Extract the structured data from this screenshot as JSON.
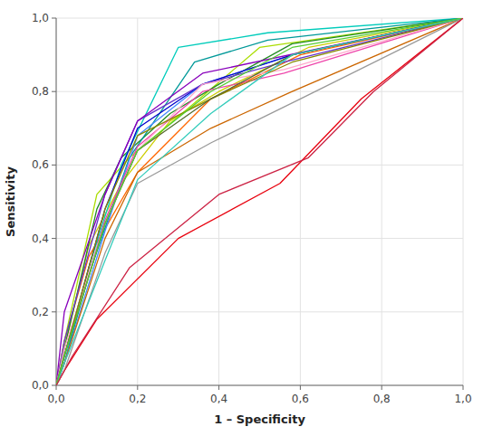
{
  "chart_data": {
    "type": "line",
    "xlabel": "1 – Specificity",
    "ylabel": "Sensitivity",
    "xlim": [
      0.0,
      1.0
    ],
    "ylim": [
      0.0,
      1.0
    ],
    "xticks": [
      {
        "value": 0.0,
        "label": "0,0"
      },
      {
        "value": 0.2,
        "label": "0,2"
      },
      {
        "value": 0.4,
        "label": "0,4"
      },
      {
        "value": 0.6,
        "label": "0,6"
      },
      {
        "value": 0.8,
        "label": "0,8"
      },
      {
        "value": 1.0,
        "label": "1,0"
      }
    ],
    "yticks": [
      {
        "value": 0.0,
        "label": "0,0"
      },
      {
        "value": 0.2,
        "label": "0,2"
      },
      {
        "value": 0.4,
        "label": "0,4"
      },
      {
        "value": 0.6,
        "label": "0,6"
      },
      {
        "value": 0.8,
        "label": "0,8"
      },
      {
        "value": 1.0,
        "label": "1,0"
      }
    ],
    "grid": true,
    "series": [
      {
        "color": "#e8000d",
        "x": [
          0,
          0.02,
          0.1,
          0.3,
          0.55,
          0.75,
          1.0
        ],
        "values": [
          0,
          0.04,
          0.18,
          0.4,
          0.55,
          0.78,
          1.0
        ]
      },
      {
        "color": "#ff6600",
        "x": [
          0,
          0.02,
          0.08,
          0.2,
          0.38,
          0.6,
          1.0
        ],
        "values": [
          0,
          0.12,
          0.35,
          0.58,
          0.78,
          0.9,
          1.0
        ]
      },
      {
        "color": "#cccc00",
        "x": [
          0,
          0.02,
          0.08,
          0.16,
          0.28,
          0.4,
          0.62,
          1.0
        ],
        "values": [
          0,
          0.1,
          0.38,
          0.55,
          0.72,
          0.8,
          0.92,
          1.0
        ]
      },
      {
        "color": "#aadd00",
        "x": [
          0,
          0.02,
          0.1,
          0.18,
          0.32,
          0.5,
          1.0
        ],
        "values": [
          0,
          0.12,
          0.52,
          0.62,
          0.75,
          0.92,
          1.0
        ]
      },
      {
        "color": "#228b22",
        "x": [
          0,
          0.02,
          0.1,
          0.16,
          0.28,
          0.4,
          0.58,
          1.0
        ],
        "values": [
          0,
          0.1,
          0.48,
          0.62,
          0.74,
          0.82,
          0.93,
          1.0
        ]
      },
      {
        "color": "#00ccbb",
        "x": [
          0,
          0.02,
          0.08,
          0.16,
          0.3,
          0.52,
          1.0
        ],
        "values": [
          0,
          0.06,
          0.32,
          0.6,
          0.92,
          0.96,
          1.0
        ]
      },
      {
        "color": "#009999",
        "x": [
          0,
          0.02,
          0.08,
          0.18,
          0.34,
          0.52,
          1.0
        ],
        "values": [
          0,
          0.06,
          0.3,
          0.62,
          0.88,
          0.94,
          1.0
        ]
      },
      {
        "color": "#4488ff",
        "x": [
          0,
          0.02,
          0.12,
          0.2,
          0.36,
          0.58,
          1.0
        ],
        "values": [
          0,
          0.06,
          0.42,
          0.68,
          0.82,
          0.9,
          1.0
        ]
      },
      {
        "color": "#0000cc",
        "x": [
          0,
          0.02,
          0.12,
          0.2,
          0.36,
          0.58,
          1.0
        ],
        "values": [
          0,
          0.08,
          0.48,
          0.7,
          0.82,
          0.9,
          1.0
        ]
      },
      {
        "color": "#6633cc",
        "x": [
          0,
          0.02,
          0.12,
          0.2,
          0.36,
          0.56,
          1.0
        ],
        "values": [
          0,
          0.12,
          0.52,
          0.72,
          0.82,
          0.88,
          1.0
        ]
      },
      {
        "color": "#8800bb",
        "x": [
          0,
          0.02,
          0.12,
          0.2,
          0.36,
          1.0
        ],
        "values": [
          0,
          0.2,
          0.52,
          0.72,
          0.85,
          1.0
        ]
      },
      {
        "color": "#ee44aa",
        "x": [
          0,
          0.02,
          0.12,
          0.2,
          0.36,
          0.56,
          1.0
        ],
        "values": [
          0,
          0.08,
          0.45,
          0.65,
          0.8,
          0.85,
          1.0
        ]
      },
      {
        "color": "#ffaacc",
        "x": [
          0,
          0.02,
          0.12,
          0.2,
          0.36,
          0.56,
          1.0
        ],
        "values": [
          0,
          0.1,
          0.44,
          0.64,
          0.82,
          0.86,
          1.0
        ]
      },
      {
        "color": "#888800",
        "x": [
          0,
          0.02,
          0.12,
          0.2,
          0.38,
          0.58,
          1.0
        ],
        "values": [
          0,
          0.08,
          0.48,
          0.68,
          0.78,
          0.88,
          1.0
        ]
      },
      {
        "color": "#cc6600",
        "x": [
          0,
          0.02,
          0.12,
          0.2,
          0.38,
          0.58,
          1.0
        ],
        "values": [
          0,
          0.06,
          0.4,
          0.58,
          0.7,
          0.8,
          1.0
        ]
      },
      {
        "color": "#999999",
        "x": [
          0,
          0.02,
          0.12,
          0.2,
          0.38,
          0.6,
          1.0
        ],
        "values": [
          0,
          0.04,
          0.36,
          0.55,
          0.66,
          0.78,
          1.0
        ]
      },
      {
        "color": "#556b2f",
        "x": [
          0,
          0.02,
          0.12,
          0.2,
          0.38,
          0.58,
          1.0
        ],
        "values": [
          0,
          0.08,
          0.44,
          0.64,
          0.78,
          0.9,
          1.0
        ]
      },
      {
        "color": "#33ccbb",
        "x": [
          0,
          0.02,
          0.12,
          0.2,
          0.38,
          0.58,
          1.0
        ],
        "values": [
          0,
          0.06,
          0.34,
          0.56,
          0.74,
          0.9,
          1.0
        ]
      },
      {
        "color": "#55cc33",
        "x": [
          0,
          0.02,
          0.12,
          0.2,
          0.38,
          0.58,
          1.0
        ],
        "values": [
          0,
          0.08,
          0.44,
          0.64,
          0.8,
          0.92,
          1.0
        ]
      },
      {
        "color": "#cc2244",
        "x": [
          0,
          0.04,
          0.18,
          0.4,
          0.62,
          0.78,
          1.0
        ],
        "values": [
          0,
          0.08,
          0.32,
          0.52,
          0.62,
          0.8,
          1.0
        ]
      }
    ]
  }
}
